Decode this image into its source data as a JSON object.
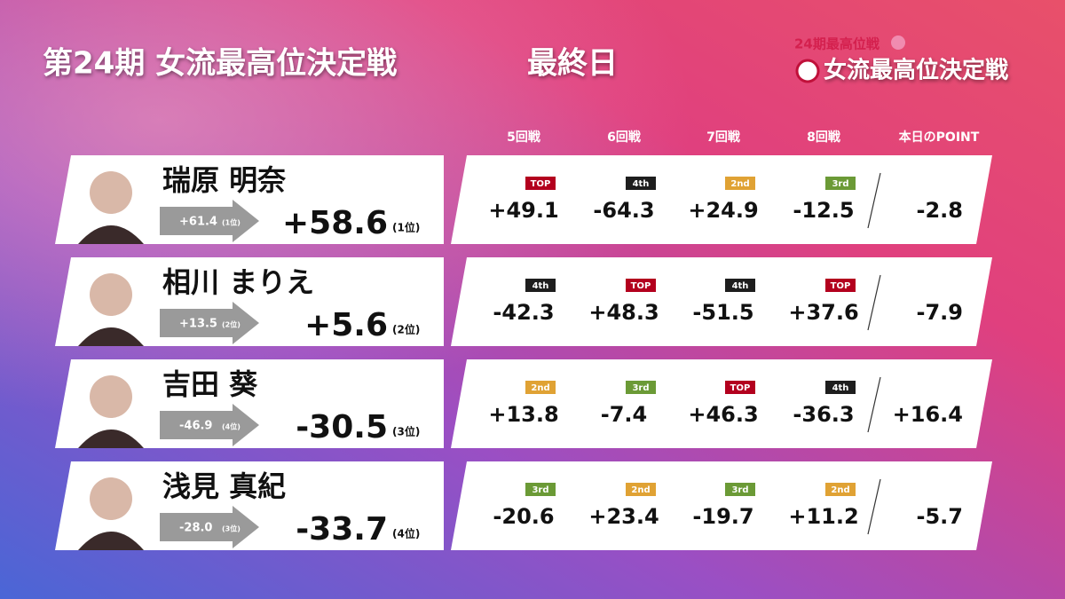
{
  "header": {
    "title": "第24期 女流最高位決定戦",
    "subtitle": "最終日",
    "logo_top": "24期最高位戦",
    "logo_main": "女流最高位決定戦"
  },
  "columns": [
    "5回戦",
    "6回戦",
    "7回戦",
    "8回戦",
    "本日のPOINT"
  ],
  "players": [
    {
      "name": "瑞原 明奈",
      "previous": "+61.4",
      "previous_rank": "(1位)",
      "total": "+58.6",
      "rank": "(1位)",
      "games": [
        {
          "place": "TOP",
          "score": "+49.1"
        },
        {
          "place": "4th",
          "score": "-64.3"
        },
        {
          "place": "2nd",
          "score": "+24.9"
        },
        {
          "place": "3rd",
          "score": "-12.5"
        }
      ],
      "today": "-2.8"
    },
    {
      "name": "相川 まりえ",
      "previous": "+13.5",
      "previous_rank": "(2位)",
      "total": "+5.6",
      "rank": "(2位)",
      "games": [
        {
          "place": "4th",
          "score": "-42.3"
        },
        {
          "place": "TOP",
          "score": "+48.3"
        },
        {
          "place": "4th",
          "score": "-51.5"
        },
        {
          "place": "TOP",
          "score": "+37.6"
        }
      ],
      "today": "-7.9"
    },
    {
      "name": "吉田 葵",
      "previous": "-46.9",
      "previous_rank": "(4位)",
      "total": "-30.5",
      "rank": "(3位)",
      "games": [
        {
          "place": "2nd",
          "score": "+13.8"
        },
        {
          "place": "3rd",
          "score": "-7.4"
        },
        {
          "place": "TOP",
          "score": "+46.3"
        },
        {
          "place": "4th",
          "score": "-36.3"
        }
      ],
      "today": "+16.4"
    },
    {
      "name": "浅見 真紀",
      "previous": "-28.0",
      "previous_rank": "(3位)",
      "total": "-33.7",
      "rank": "(4位)",
      "games": [
        {
          "place": "3rd",
          "score": "-20.6"
        },
        {
          "place": "2nd",
          "score": "+23.4"
        },
        {
          "place": "3rd",
          "score": "-19.7"
        },
        {
          "place": "2nd",
          "score": "+11.2"
        }
      ],
      "today": "-5.7"
    }
  ]
}
